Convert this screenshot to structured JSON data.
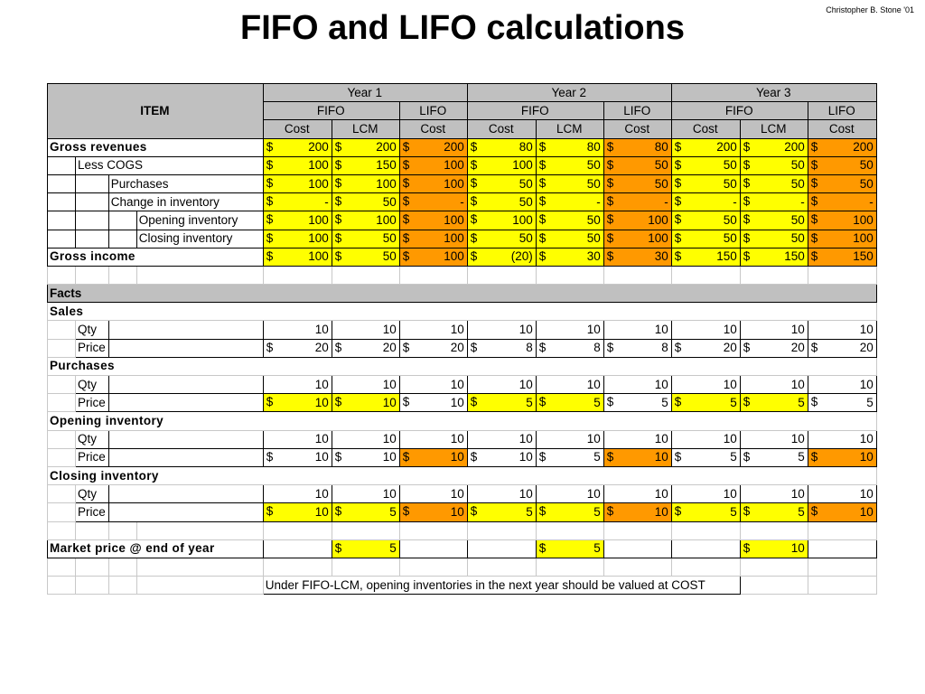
{
  "title": "FIFO and LIFO calculations",
  "credit": "Christopher B. Stone '01",
  "colors": {
    "yellow": "#ffff00",
    "orange": "#ff9900",
    "header_gray": "#c0c0c0"
  },
  "header": {
    "item": "ITEM",
    "years": [
      "Year 1",
      "Year 2",
      "Year 3"
    ],
    "fifo": "FIFO",
    "lifo": "LIFO",
    "cost": "Cost",
    "lcm": "LCM"
  },
  "income": {
    "gross_revenues": {
      "label": "Gross revenues",
      "values": [
        "200",
        "200",
        "200",
        "80",
        "80",
        "80",
        "200",
        "200",
        "200"
      ]
    },
    "less_cogs": {
      "label": "Less COGS",
      "values": [
        "100",
        "150",
        "100",
        "100",
        "50",
        "50",
        "50",
        "50",
        "50"
      ]
    },
    "purchases": {
      "label": "Purchases",
      "values": [
        "100",
        "100",
        "100",
        "50",
        "50",
        "50",
        "50",
        "50",
        "50"
      ]
    },
    "change_inventory": {
      "label": "Change in inventory",
      "values": [
        "-",
        "50",
        "-",
        "50",
        "-",
        "-",
        "-",
        "-",
        "-"
      ]
    },
    "opening_inventory": {
      "label": "Opening inventory",
      "values": [
        "100",
        "100",
        "100",
        "100",
        "50",
        "100",
        "50",
        "50",
        "100"
      ]
    },
    "closing_inventory": {
      "label": "Closing inventory",
      "values": [
        "100",
        "50",
        "100",
        "50",
        "50",
        "100",
        "50",
        "50",
        "100"
      ]
    },
    "gross_income": {
      "label": "Gross income",
      "values": [
        "100",
        "50",
        "100",
        "(20)",
        "30",
        "30",
        "150",
        "150",
        "150"
      ]
    }
  },
  "facts": {
    "label": "Facts",
    "qty_label": "Qty",
    "price_label": "Price",
    "sales": {
      "label": "Sales",
      "qty": [
        "10",
        "10",
        "10",
        "10",
        "10",
        "10",
        "10",
        "10",
        "10"
      ],
      "price": [
        "20",
        "20",
        "20",
        "8",
        "8",
        "8",
        "20",
        "20",
        "20"
      ]
    },
    "purchases": {
      "label": "Purchases",
      "qty": [
        "10",
        "10",
        "10",
        "10",
        "10",
        "10",
        "10",
        "10",
        "10"
      ],
      "price": [
        "10",
        "10",
        "10",
        "5",
        "5",
        "5",
        "5",
        "5",
        "5"
      ]
    },
    "opening_inventory": {
      "label": "Opening inventory",
      "qty": [
        "10",
        "10",
        "10",
        "10",
        "10",
        "10",
        "10",
        "10",
        "10"
      ],
      "price": [
        "10",
        "10",
        "10",
        "10",
        "5",
        "10",
        "5",
        "5",
        "10"
      ]
    },
    "closing_inventory": {
      "label": "Closing inventory",
      "qty": [
        "10",
        "10",
        "10",
        "10",
        "10",
        "10",
        "10",
        "10",
        "10"
      ],
      "price": [
        "10",
        "5",
        "10",
        "5",
        "5",
        "10",
        "5",
        "5",
        "10"
      ]
    }
  },
  "market_price": {
    "label": "Market price @ end of year",
    "values": [
      "5",
      "5",
      "10"
    ]
  },
  "note": "Under FIFO-LCM, opening inventories in the next year should be valued at COST"
}
